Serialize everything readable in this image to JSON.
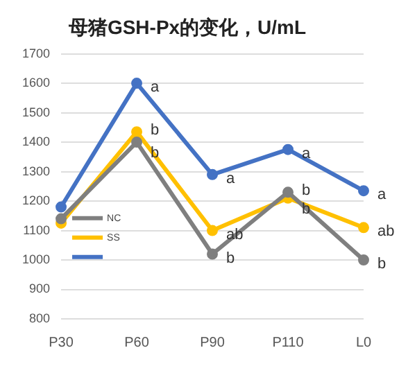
{
  "chart_data": {
    "type": "line",
    "title": "母猪GSH-Px的变化，U/mL",
    "categories": [
      "P30",
      "P60",
      "P90",
      "P110",
      "L0"
    ],
    "series": [
      {
        "name": "NC",
        "color": "#7f7f7f",
        "values": [
          1140,
          1400,
          1020,
          1230,
          1000
        ]
      },
      {
        "name": "SS",
        "color": "#ffc000",
        "values": [
          1125,
          1435,
          1100,
          1210,
          1110
        ]
      },
      {
        "color": "#4472c4",
        "values": [
          1180,
          1600,
          1290,
          1375,
          1235
        ]
      }
    ],
    "ylim": [
      800,
      1700
    ],
    "yticks": [
      800,
      900,
      1000,
      1100,
      1200,
      1300,
      1400,
      1500,
      1600,
      1700
    ],
    "grid": "y",
    "legend": "left",
    "marker": "circle",
    "line_style": "solid",
    "annotations": [
      {
        "text": "a",
        "x": "P60",
        "y": 1600
      },
      {
        "text": "b",
        "x": "P60",
        "y": 1435
      },
      {
        "text": "b",
        "x": "P60",
        "y": 1400
      },
      {
        "text": "a",
        "x": "P90",
        "y": 1290
      },
      {
        "text": "ab",
        "x": "P90",
        "y": 1100
      },
      {
        "text": "b",
        "x": "P90",
        "y": 1020
      },
      {
        "text": "a",
        "x": "P110",
        "y": 1375
      },
      {
        "text": "b",
        "x": "P110",
        "y": 1230
      },
      {
        "text": "b",
        "x": "P110",
        "y": 1210
      },
      {
        "text": "a",
        "x": "L0",
        "y": 1235
      },
      {
        "text": "ab",
        "x": "L0",
        "y": 1110
      },
      {
        "text": "b",
        "x": "L0",
        "y": 1000
      }
    ]
  }
}
